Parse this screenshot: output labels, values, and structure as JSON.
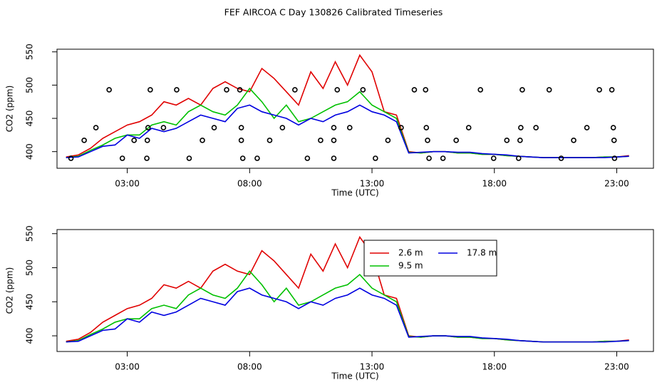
{
  "title": "FEF AIRCOA C  Day 130826  Calibrated Timeseries",
  "chart_data": [
    {
      "type": "line",
      "xlabel": "Time (UTC)",
      "ylabel": "CO2 (ppm)",
      "xlim": [
        0.13,
        24.5
      ],
      "xticks": [
        {
          "value": 3,
          "label": "03:00"
        },
        {
          "value": 8,
          "label": "08:00"
        },
        {
          "value": 13,
          "label": "13:00"
        },
        {
          "value": 18,
          "label": "18:00"
        },
        {
          "value": 23,
          "label": "23:00"
        }
      ],
      "ylim": [
        375,
        554
      ],
      "yticks": [
        400,
        450,
        500,
        550
      ],
      "x": [
        0.5,
        1,
        1.5,
        2,
        2.5,
        3,
        3.5,
        4,
        4.5,
        5,
        5.5,
        6,
        6.5,
        7,
        7.5,
        8,
        8.5,
        9,
        9.5,
        10,
        10.5,
        11,
        11.5,
        12,
        12.5,
        13,
        13.5,
        14,
        14.5,
        15,
        15.5,
        16,
        16.5,
        17,
        17.5,
        18,
        18.5,
        19,
        19.5,
        20,
        20.5,
        21,
        21.5,
        22,
        22.5,
        23,
        23.5
      ],
      "series": [
        {
          "color": "#e00000",
          "values": [
            392,
            395,
            405,
            420,
            430,
            440,
            445,
            455,
            475,
            470,
            480,
            470,
            495,
            505,
            495,
            490,
            525,
            510,
            490,
            470,
            520,
            495,
            535,
            500,
            545,
            520,
            460,
            455,
            400,
            398,
            400,
            400,
            398,
            398,
            396,
            396,
            394,
            393,
            392,
            391,
            391,
            391,
            391,
            391,
            392,
            392,
            394
          ]
        },
        {
          "color": "#00c000",
          "values": [
            391,
            393,
            402,
            410,
            420,
            425,
            425,
            440,
            445,
            440,
            460,
            470,
            460,
            455,
            470,
            495,
            475,
            450,
            470,
            445,
            450,
            460,
            470,
            475,
            490,
            470,
            460,
            450,
            399,
            398,
            400,
            400,
            398,
            398,
            396,
            396,
            394,
            393,
            392,
            391,
            391,
            391,
            391,
            391,
            392,
            392,
            393
          ]
        },
        {
          "color": "#0000e0",
          "values": [
            391,
            392,
            400,
            408,
            410,
            425,
            420,
            435,
            430,
            435,
            445,
            455,
            450,
            445,
            465,
            470,
            460,
            455,
            450,
            440,
            450,
            445,
            455,
            460,
            470,
            460,
            455,
            445,
            398,
            399,
            400,
            400,
            399,
            399,
            397,
            396,
            395,
            393,
            392,
            391,
            391,
            391,
            391,
            391,
            391,
            392,
            393
          ]
        }
      ],
      "markers": {
        "color": "#000000",
        "x": [
          0.7,
          1.24,
          1.72,
          2.26,
          2.8,
          3.28,
          3.82,
          3.85,
          3.8,
          3.94,
          4.48,
          5.02,
          5.53,
          6.07,
          6.55,
          7.06,
          7.6,
          7.66,
          7.66,
          7.72,
          8.31,
          8.82,
          9.34,
          9.85,
          10.36,
          10.9,
          11.44,
          11.44,
          11.44,
          11.58,
          12.09,
          12.63,
          13.14,
          13.65,
          14.19,
          14.73,
          15.19,
          15.22,
          15.27,
          15.33,
          15.9,
          16.44,
          16.95,
          17.43,
          17.97,
          18.51,
          18.99,
          19.05,
          19.08,
          19.14,
          19.7,
          20.24,
          20.73,
          21.24,
          21.78,
          22.29,
          22.8,
          22.86,
          22.89,
          22.91
        ],
        "values": [
          390,
          417,
          436,
          493,
          390,
          417,
          417,
          436,
          390,
          493,
          436,
          493,
          390,
          417,
          436,
          493,
          493,
          436,
          417,
          390,
          390,
          417,
          436,
          493,
          390,
          417,
          436,
          417,
          390,
          493,
          436,
          493,
          390,
          417,
          436,
          493,
          493,
          436,
          417,
          390,
          390,
          417,
          436,
          493,
          390,
          417,
          390,
          417,
          436,
          493,
          436,
          493,
          390,
          417,
          436,
          493,
          493,
          436,
          417,
          390
        ]
      }
    },
    {
      "type": "line",
      "xlabel": "Time (UTC)",
      "ylabel": "CO2 (ppm)",
      "xlim": [
        0.13,
        24.5
      ],
      "xticks": [
        {
          "value": 3,
          "label": "03:00"
        },
        {
          "value": 8,
          "label": "08:00"
        },
        {
          "value": 13,
          "label": "13:00"
        },
        {
          "value": 18,
          "label": "18:00"
        },
        {
          "value": 23,
          "label": "23:00"
        }
      ],
      "ylim": [
        377,
        556
      ],
      "yticks": [
        400,
        450,
        500,
        550
      ],
      "legend": "top",
      "x": [
        0.5,
        1,
        1.5,
        2,
        2.5,
        3,
        3.5,
        4,
        4.5,
        5,
        5.5,
        6,
        6.5,
        7,
        7.5,
        8,
        8.5,
        9,
        9.5,
        10,
        10.5,
        11,
        11.5,
        12,
        12.5,
        13,
        13.5,
        14,
        14.5,
        15,
        15.5,
        16,
        16.5,
        17,
        17.5,
        18,
        18.5,
        19,
        19.5,
        20,
        20.5,
        21,
        21.5,
        22,
        22.5,
        23,
        23.5
      ],
      "series": [
        {
          "name": "2.6 m",
          "color": "#e00000",
          "values": [
            392,
            395,
            405,
            420,
            430,
            440,
            445,
            455,
            475,
            470,
            480,
            470,
            495,
            505,
            495,
            490,
            525,
            510,
            490,
            470,
            520,
            495,
            535,
            500,
            545,
            520,
            460,
            455,
            400,
            398,
            400,
            400,
            398,
            398,
            396,
            396,
            394,
            393,
            392,
            391,
            391,
            391,
            391,
            391,
            392,
            392,
            394
          ]
        },
        {
          "name": "9.5 m",
          "color": "#00c000",
          "values": [
            391,
            393,
            402,
            410,
            420,
            425,
            425,
            440,
            445,
            440,
            460,
            470,
            460,
            455,
            470,
            495,
            475,
            450,
            470,
            445,
            450,
            460,
            470,
            475,
            490,
            470,
            460,
            450,
            399,
            398,
            400,
            400,
            398,
            398,
            396,
            396,
            394,
            393,
            392,
            391,
            391,
            391,
            391,
            391,
            392,
            392,
            393
          ]
        },
        {
          "name": "17.8 m",
          "color": "#0000e0",
          "values": [
            391,
            392,
            400,
            408,
            410,
            425,
            420,
            435,
            430,
            435,
            445,
            455,
            450,
            445,
            465,
            470,
            460,
            455,
            450,
            440,
            450,
            445,
            455,
            460,
            470,
            460,
            455,
            445,
            398,
            399,
            400,
            400,
            399,
            399,
            397,
            396,
            395,
            393,
            392,
            391,
            391,
            391,
            391,
            391,
            391,
            392,
            393
          ]
        }
      ]
    }
  ]
}
